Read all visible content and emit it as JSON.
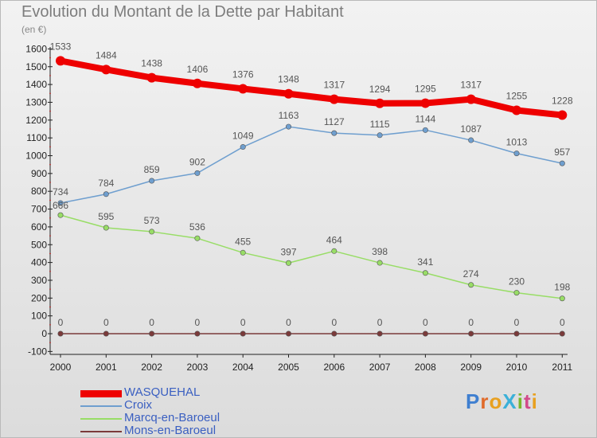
{
  "chart_data": {
    "type": "line",
    "title": "Evolution du Montant de la Dette par Habitant",
    "subtitle": "(en €)",
    "categories": [
      "2000",
      "2001",
      "2002",
      "2003",
      "2004",
      "2005",
      "2006",
      "2007",
      "2008",
      "2009",
      "2010",
      "2011"
    ],
    "ylim": [
      -100,
      1600
    ],
    "yticks": [
      -100,
      0,
      100,
      200,
      300,
      400,
      500,
      600,
      700,
      800,
      900,
      1000,
      1100,
      1200,
      1300,
      1400,
      1500,
      1600
    ],
    "grid": false,
    "legend_position": "bottom-left",
    "series": [
      {
        "name": "WASQUEHAL",
        "color": "#ee0000",
        "values": [
          1533,
          1484,
          1438,
          1406,
          1376,
          1348,
          1317,
          1294,
          1295,
          1317,
          1255,
          1228
        ]
      },
      {
        "name": "Croix",
        "color": "#6f9fcf",
        "values": [
          734,
          784,
          859,
          902,
          1049,
          1163,
          1127,
          1115,
          1144,
          1087,
          1013,
          957
        ]
      },
      {
        "name": "Marcq-en-Baroeul",
        "color": "#98dd66",
        "values": [
          666,
          595,
          573,
          536,
          455,
          397,
          464,
          398,
          341,
          274,
          230,
          198
        ]
      },
      {
        "name": "Mons-en-Baroeul",
        "color": "#7b3a3a",
        "values": [
          0,
          0,
          0,
          0,
          0,
          0,
          0,
          0,
          0,
          0,
          0,
          0
        ]
      }
    ]
  },
  "logo": {
    "text": "ProXiti"
  }
}
